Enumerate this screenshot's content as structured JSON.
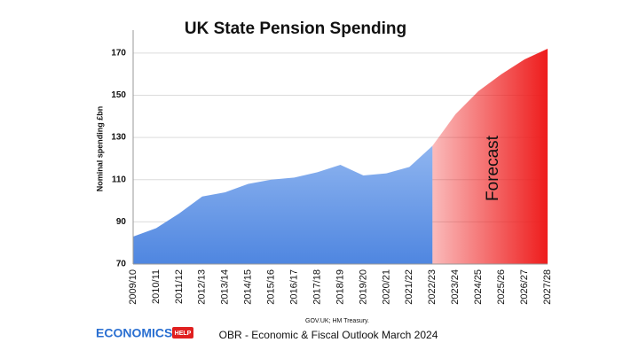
{
  "chart_data": {
    "type": "area",
    "title": "UK State Pension Spending",
    "y_label": "Nominal spending £bn",
    "source": "GOV.UK; HM Treasury.",
    "footer": "OBR - Economic & Fiscal Outlook March 2024",
    "logo": {
      "text": "ECONOMICS",
      "badge": "HELP"
    },
    "categories": [
      "2009/10",
      "2010/11",
      "2011/12",
      "2012/13",
      "2013/14",
      "2014/15",
      "2015/16",
      "2016/17",
      "2017/18",
      "2018/19",
      "2019/20",
      "2020/21",
      "2021/22",
      "2022/23",
      "2023/24",
      "2024/25",
      "2025/26",
      "2026/27",
      "2027/28"
    ],
    "series": [
      {
        "color": "#5f93e6",
        "values": [
          83,
          87,
          94,
          102,
          104,
          108,
          110,
          111,
          113.5,
          117,
          112,
          113,
          116,
          126,
          null,
          null,
          null,
          null,
          null
        ]
      },
      {
        "name": "Forecast",
        "color": "#ee1c1c",
        "values": [
          null,
          null,
          null,
          null,
          null,
          null,
          null,
          null,
          null,
          null,
          null,
          null,
          null,
          126,
          141,
          152,
          160,
          167,
          172
        ]
      }
    ],
    "ylim": [
      70,
      180
    ],
    "yticks": [
      70,
      90,
      110,
      130,
      150,
      170
    ],
    "grid": true
  }
}
